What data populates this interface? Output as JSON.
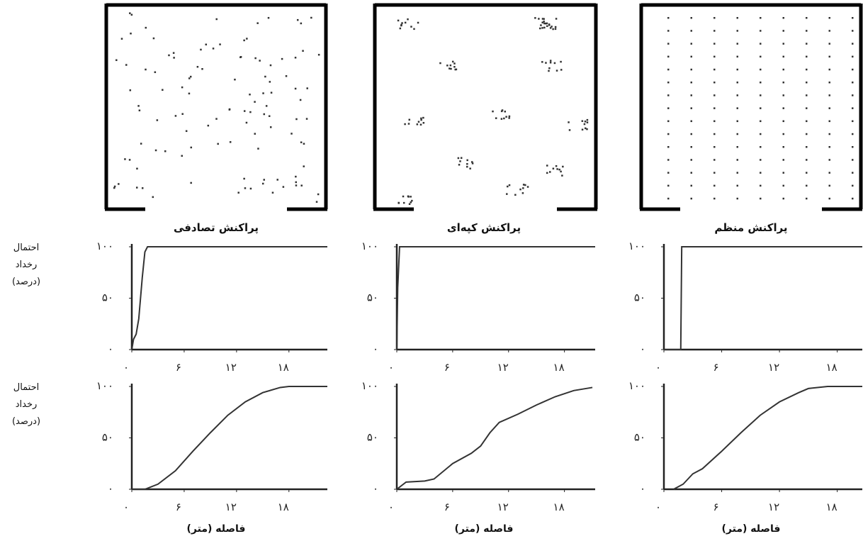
{
  "chart_data": [
    {
      "type": "line",
      "title": "پراکنش تصادفی",
      "y_label": "احتمال رخداد (درصد)",
      "x": [
        0,
        0.2,
        0.5,
        0.8,
        1.2,
        1.5,
        1.8,
        22.4
      ],
      "series": [
        {
          "color": "#333333",
          "values": [
            0,
            10,
            15,
            30,
            70,
            95,
            100,
            100
          ]
        }
      ],
      "xlim": [
        0,
        22.4
      ],
      "ylim": [
        0,
        100
      ],
      "xticks": [
        {
          "value": 0,
          "label": "۰"
        },
        {
          "value": 6,
          "label": "۶"
        },
        {
          "value": 12,
          "label": "۱۲"
        },
        {
          "value": 18,
          "label": "۱۸"
        }
      ],
      "yticks": [
        {
          "value": 0,
          "label": "۰"
        },
        {
          "value": 50,
          "label": "۵۰"
        },
        {
          "value": 100,
          "label": "۱۰۰"
        }
      ]
    },
    {
      "type": "line",
      "title": "پراکنش کپه‌ای",
      "x": [
        0,
        0.1,
        0.3,
        21.3
      ],
      "series": [
        {
          "color": "#333333",
          "values": [
            0,
            60,
            100,
            100
          ]
        }
      ],
      "xlim": [
        0,
        21.3
      ],
      "ylim": [
        0,
        100
      ],
      "xticks": [
        {
          "value": 0,
          "label": "۰"
        },
        {
          "value": 6,
          "label": "۶"
        },
        {
          "value": 12,
          "label": "۱۲"
        },
        {
          "value": 18,
          "label": "۱۸"
        }
      ],
      "yticks": [
        {
          "value": 0,
          "label": "۰"
        },
        {
          "value": 50,
          "label": "۵۰"
        },
        {
          "value": 100,
          "label": "۱۰۰"
        }
      ]
    },
    {
      "type": "line",
      "title": "پراکنش منظم",
      "x": [
        0,
        1.75,
        1.85,
        20.6
      ],
      "series": [
        {
          "color": "#333333",
          "values": [
            0,
            0,
            100,
            100
          ]
        }
      ],
      "xlim": [
        0,
        20.6
      ],
      "ylim": [
        0,
        100
      ],
      "xticks": [
        {
          "value": 0,
          "label": "۰"
        },
        {
          "value": 6,
          "label": "۶"
        },
        {
          "value": 12,
          "label": "۱۲"
        },
        {
          "value": 18,
          "label": "۱۸"
        }
      ],
      "yticks": [
        {
          "value": 0,
          "label": "۰"
        },
        {
          "value": 50,
          "label": "۵۰"
        },
        {
          "value": 100,
          "label": "۱۰۰"
        }
      ]
    },
    {
      "type": "line",
      "y_label": "احتمال رخداد (درصد)",
      "x_label": "فاصله (متر)",
      "x": [
        0,
        1.5,
        3,
        5,
        7,
        9,
        11,
        13,
        15,
        17,
        18,
        22.4
      ],
      "series": [
        {
          "color": "#333333",
          "values": [
            0,
            0,
            5,
            18,
            37,
            55,
            72,
            85,
            94,
            99,
            100,
            100
          ]
        }
      ],
      "xlim": [
        0,
        22.4
      ],
      "ylim": [
        0,
        100
      ],
      "xticks": [
        {
          "value": 0,
          "label": "۰"
        },
        {
          "value": 6,
          "label": "۶"
        },
        {
          "value": 12,
          "label": "۱۲"
        },
        {
          "value": 18,
          "label": "۱۸"
        }
      ],
      "yticks": [
        {
          "value": 0,
          "label": "۰"
        },
        {
          "value": 50,
          "label": "۵۰"
        },
        {
          "value": 100,
          "label": "۱۰۰"
        }
      ]
    },
    {
      "type": "line",
      "x_label": "فاصله (متر)",
      "x": [
        0,
        1,
        3,
        4,
        6,
        8,
        9,
        10,
        11,
        13,
        15,
        17,
        19,
        21
      ],
      "series": [
        {
          "color": "#333333",
          "values": [
            0,
            7,
            8,
            10,
            25,
            35,
            42,
            55,
            65,
            73,
            82,
            90,
            96,
            99
          ]
        }
      ],
      "xlim": [
        0,
        21.3
      ],
      "ylim": [
        0,
        100
      ],
      "xticks": [
        {
          "value": 0,
          "label": "۰"
        },
        {
          "value": 6,
          "label": "۶"
        },
        {
          "value": 12,
          "label": "۱۲"
        },
        {
          "value": 18,
          "label": "۱۸"
        }
      ],
      "yticks": [
        {
          "value": 0,
          "label": "۰"
        },
        {
          "value": 50,
          "label": "۵۰"
        },
        {
          "value": 100,
          "label": "۱۰۰"
        }
      ]
    },
    {
      "type": "line",
      "x_label": "فاصله (متر)",
      "x": [
        1,
        2,
        3,
        4,
        6,
        8,
        10,
        12,
        14,
        15,
        17,
        20.6
      ],
      "series": [
        {
          "color": "#333333",
          "values": [
            0,
            5,
            15,
            20,
            37,
            55,
            72,
            85,
            94,
            98,
            100,
            100
          ]
        }
      ],
      "xlim": [
        0,
        20.6
      ],
      "ylim": [
        0,
        100
      ],
      "xticks": [
        {
          "value": 0,
          "label": "۰"
        },
        {
          "value": 6,
          "label": "۶"
        },
        {
          "value": 12,
          "label": "۱۲"
        },
        {
          "value": 18,
          "label": "۱۸"
        }
      ],
      "yticks": [
        {
          "value": 0,
          "label": "۰"
        },
        {
          "value": 50,
          "label": "۵۰"
        },
        {
          "value": 100,
          "label": "۱۰۰"
        }
      ]
    }
  ]
}
